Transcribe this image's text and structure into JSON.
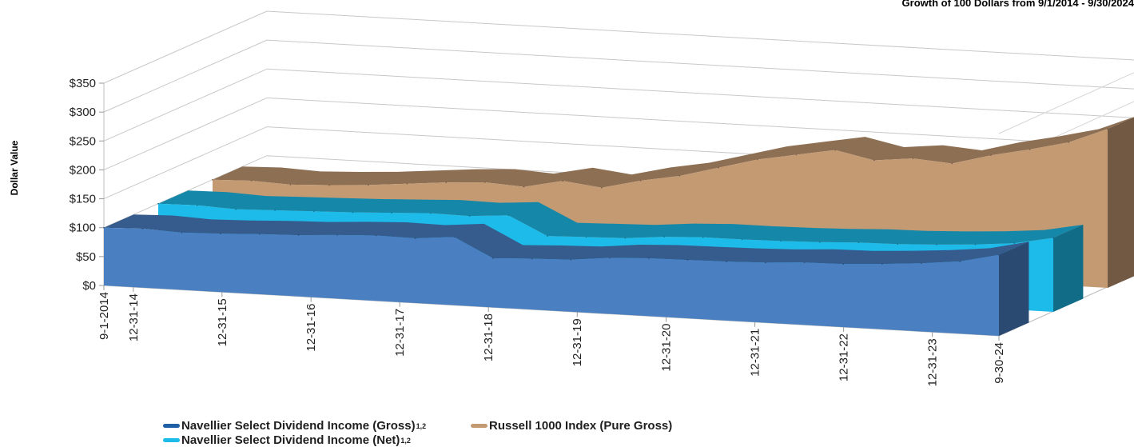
{
  "chart_data": {
    "type": "area",
    "title": "Growth of 100 Dollars from 9/1/2014 - 9/30/2024",
    "xlabel": "",
    "ylabel": "Dollar Value",
    "ylim": [
      0,
      350
    ],
    "yticks": [
      0,
      50,
      100,
      150,
      200,
      250,
      300,
      350
    ],
    "ytick_labels": [
      "$0",
      "$50",
      "$100",
      "$150",
      "$200",
      "$250",
      "$300",
      "$350"
    ],
    "x_tick_labels": [
      "9-1-2014",
      "12-31-14",
      "12-31-15",
      "12-31-16",
      "12-31-17",
      "12-31-18",
      "12-31-19",
      "12-31-20",
      "12-31-21",
      "12-31-22",
      "12-31-23",
      "9-30-24"
    ],
    "x_tick_dates": [
      "2014-09-01",
      "2014-12-31",
      "2015-12-31",
      "2016-12-31",
      "2017-12-31",
      "2018-12-31",
      "2019-12-31",
      "2020-12-31",
      "2021-12-31",
      "2022-12-31",
      "2023-12-31",
      "2024-09-30"
    ],
    "grid": true,
    "legend_position": "bottom",
    "series": [
      {
        "name": "Navellier Select Dividend Income (Gross)",
        "name_sup": "1,2",
        "color": "#4a80c2",
        "values": [
          100,
          102,
          99,
          101,
          104,
          106,
          110,
          113,
          112,
          118,
          85,
          88,
          90,
          97,
          100,
          101,
          102,
          104,
          108,
          109,
          113,
          118,
          125,
          140
        ]
      },
      {
        "name": "Navellier Select Dividend Income (Net)",
        "name_sup": "1,2",
        "color": "#1dbbea",
        "values": [
          100,
          101,
          98,
          100,
          102,
          104,
          107,
          110,
          109,
          114,
          82,
          84,
          86,
          92,
          95,
          95,
          96,
          98,
          101,
          102,
          105,
          109,
          115,
          128
        ]
      },
      {
        "name": "Russell 1000 Index (Pure Gross)",
        "name_sup": "",
        "color": "#c49a73",
        "values": [
          100,
          102,
          99,
          102,
          106,
          112,
          118,
          122,
          118,
          132,
          124,
          140,
          152,
          170,
          188,
          200,
          212,
          198,
          205,
          200,
          218,
          232,
          248,
          275
        ]
      }
    ]
  }
}
